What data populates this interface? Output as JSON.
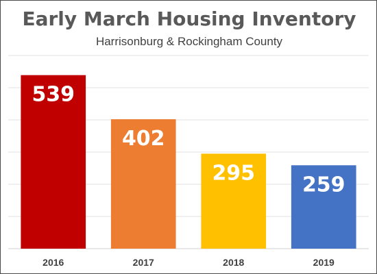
{
  "chart_data": {
    "type": "bar",
    "title": "Early March Housing Inventory",
    "subtitle": "Harrisonburg & Rockingham County",
    "categories": [
      "2016",
      "2017",
      "2018",
      "2019"
    ],
    "values": [
      539,
      402,
      295,
      259
    ],
    "colors": [
      "#c00000",
      "#ed7d31",
      "#ffc000",
      "#4472c4"
    ],
    "data_labels": [
      "539",
      "402",
      "295",
      "259"
    ],
    "ylim": [
      0,
      600
    ],
    "grid": true,
    "gridline_color": "#e2e2e2",
    "xlabel": "",
    "ylabel": ""
  }
}
